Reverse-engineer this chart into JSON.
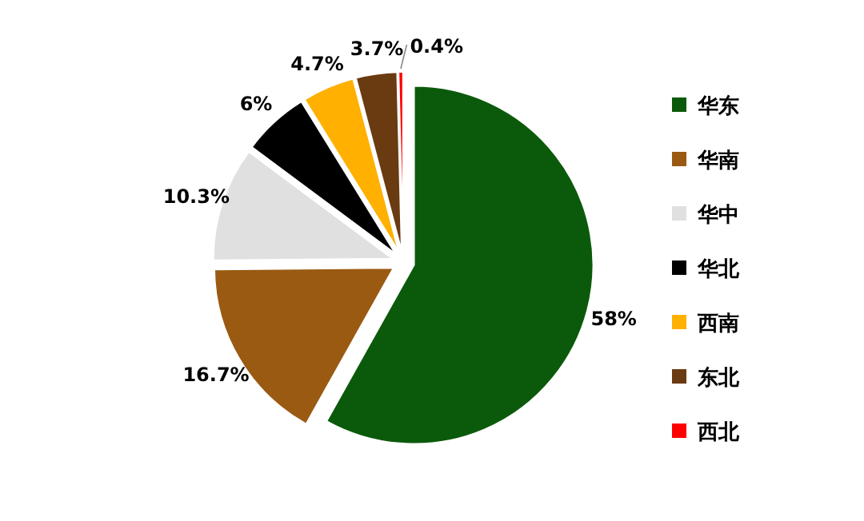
{
  "chart_data": {
    "type": "pie",
    "categories": [
      "华东",
      "华南",
      "华中",
      "华北",
      "西南",
      "东北",
      "西北"
    ],
    "values": [
      58,
      16.7,
      10.3,
      6,
      4.7,
      3.7,
      0.4
    ],
    "colors": [
      "#0b5a0b",
      "#9a5a12",
      "#e0e0e0",
      "#000000",
      "#ffb000",
      "#6a3a10",
      "#ff0000"
    ],
    "value_labels": [
      "58%",
      "16.7%",
      "10.3%",
      "6%",
      "4.7%",
      "3.7%",
      "0.4%"
    ],
    "legend": "right"
  }
}
